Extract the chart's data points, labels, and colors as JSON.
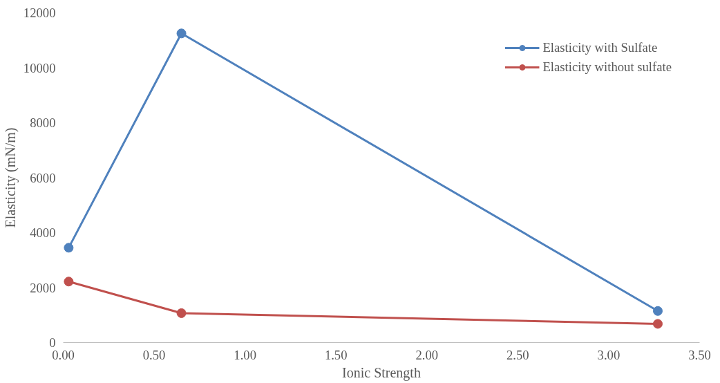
{
  "chart_data": {
    "type": "line",
    "xlabel": "Ionic Strength",
    "ylabel": "Elasticity (mN/m)",
    "xlim": [
      0,
      3.5
    ],
    "xticks": [
      {
        "value": 0,
        "label": "0.00"
      },
      {
        "value": 0.5,
        "label": "0.50"
      },
      {
        "value": 1,
        "label": "1.00"
      },
      {
        "value": 1.5,
        "label": "1.50"
      },
      {
        "value": 2,
        "label": "2.00"
      },
      {
        "value": 2.5,
        "label": "2.50"
      },
      {
        "value": 3,
        "label": "3.00"
      },
      {
        "value": 3.5,
        "label": "3.50"
      }
    ],
    "ylim": [
      0,
      12000
    ],
    "yticks": [
      0,
      2000,
      4000,
      6000,
      8000,
      10000,
      12000
    ],
    "x": [
      0.03,
      0.65,
      3.27
    ],
    "series": [
      {
        "name": "Elasticity with Sulfate",
        "color": "#4f81bd",
        "values": [
          3450,
          11250,
          1150
        ]
      },
      {
        "name": "Elasticity without sulfate",
        "color": "#c0504d",
        "values": [
          2220,
          1070,
          680
        ]
      }
    ],
    "marker": "circle",
    "line_style": "solid",
    "grid": false,
    "legend": "top right"
  }
}
